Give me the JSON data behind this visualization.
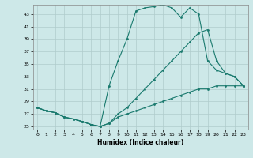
{
  "xlabel": "Humidex (Indice chaleur)",
  "background_color": "#cde8e8",
  "line_color": "#1a7a6e",
  "grid_color": "#b0cccc",
  "xlim": [
    -0.5,
    23.5
  ],
  "ylim": [
    24.5,
    44.5
  ],
  "yticks": [
    25,
    27,
    29,
    31,
    33,
    35,
    37,
    39,
    41,
    43
  ],
  "xticks": [
    0,
    1,
    2,
    3,
    4,
    5,
    6,
    7,
    8,
    9,
    10,
    11,
    12,
    13,
    14,
    15,
    16,
    17,
    18,
    19,
    20,
    21,
    22,
    23
  ],
  "curve1_x": [
    0,
    1,
    2,
    3,
    4,
    5,
    6,
    7,
    8,
    9,
    10,
    11,
    12,
    13,
    14,
    15,
    16,
    17,
    18,
    19,
    20,
    21,
    22,
    23
  ],
  "curve1_y": [
    28.0,
    27.5,
    27.2,
    26.5,
    26.2,
    25.8,
    25.3,
    25.0,
    25.5,
    26.5,
    27.0,
    27.5,
    28.0,
    28.5,
    29.0,
    29.5,
    30.0,
    30.5,
    31.0,
    31.0,
    31.5,
    31.5,
    31.5,
    31.5
  ],
  "curve2_x": [
    0,
    1,
    2,
    3,
    4,
    5,
    6,
    7,
    8,
    9,
    10,
    11,
    12,
    13,
    14,
    15,
    16,
    17,
    18,
    19,
    20,
    21,
    22,
    23
  ],
  "curve2_y": [
    28.0,
    27.5,
    27.2,
    26.5,
    26.2,
    25.8,
    25.3,
    25.0,
    25.5,
    27.0,
    28.0,
    29.5,
    31.0,
    32.5,
    34.0,
    35.5,
    37.0,
    38.5,
    40.0,
    40.5,
    35.5,
    33.5,
    33.0,
    31.5
  ],
  "curve3_x": [
    0,
    1,
    2,
    3,
    4,
    5,
    6,
    7,
    8,
    9,
    10,
    11,
    12,
    13,
    14,
    15,
    16,
    17,
    18,
    19,
    20,
    21,
    22,
    23
  ],
  "curve3_y": [
    28.0,
    27.5,
    27.2,
    26.5,
    26.2,
    25.8,
    25.3,
    25.0,
    31.5,
    35.5,
    39.0,
    43.5,
    44.0,
    44.2,
    44.5,
    44.0,
    42.5,
    44.0,
    43.0,
    35.5,
    34.0,
    33.5,
    33.0,
    31.5
  ]
}
